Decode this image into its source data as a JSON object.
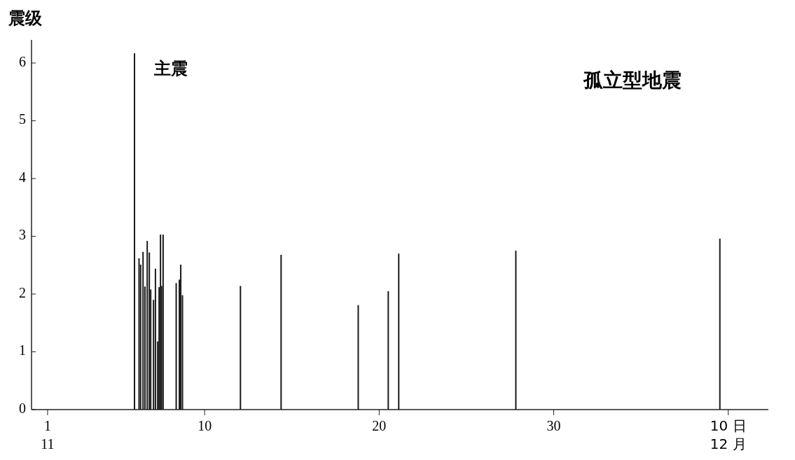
{
  "chart_data": {
    "type": "bar",
    "title": "孤立型地震",
    "ylabel": "震级",
    "x": [
      5.98,
      6.24,
      6.33,
      6.47,
      6.58,
      6.71,
      6.83,
      6.91,
      7.07,
      7.18,
      7.31,
      7.39,
      7.47,
      7.53,
      7.62,
      8.37,
      8.55,
      8.63,
      8.73,
      12.05,
      14.38,
      18.8,
      20.52,
      21.12,
      27.83,
      39.52
    ],
    "values": [
      6.17,
      2.62,
      2.51,
      2.73,
      2.13,
      2.92,
      2.72,
      2.08,
      1.9,
      2.44,
      1.18,
      2.12,
      3.03,
      2.14,
      3.03,
      2.19,
      2.25,
      2.51,
      1.98,
      2.14,
      2.68,
      1.81,
      2.05,
      2.7,
      2.75,
      2.96
    ],
    "color": "#1a1a1a",
    "xlim": [
      0.08,
      42.3
    ],
    "xticks": [
      {
        "value": 1,
        "label": "1\n11"
      },
      10,
      20,
      30,
      {
        "value": 40,
        "label": "10 日\n12 月"
      }
    ],
    "ylim": [
      0,
      6.4
    ],
    "yticks": [
      0,
      1,
      2,
      3,
      4,
      5,
      6
    ],
    "annotations": [
      {
        "text": "主震",
        "x": 5.98,
        "y": 6.17
      }
    ],
    "grid": false
  }
}
